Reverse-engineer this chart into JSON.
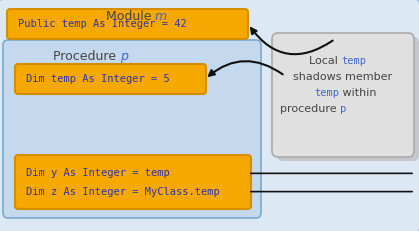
{
  "module_label": "Module ",
  "module_m": "m",
  "procedure_label": "Procedure ",
  "procedure_p": "p",
  "box1_text": "Public temp As Integer = 42",
  "box2_text": "Dim temp As Integer = 5",
  "box3_line1": "Dim y As Integer = temp",
  "box3_line2": "Dim z As Integer = MyClass.temp",
  "module_bg": "#dce9f5",
  "module_border": "#a0bcd8",
  "procedure_bg": "#c5d9ee",
  "procedure_border": "#7aaacf",
  "code_box_bg": "#f5a800",
  "code_box_border": "#d48f00",
  "callout_bg": "#e0e0e0",
  "callout_shadow": "#bbbbbb",
  "callout_border": "#aaaaaa",
  "code_text_color": "#3333aa",
  "label_text_color": "#444444",
  "label_blue_color": "#4466cc",
  "arrow_color": "#111111"
}
